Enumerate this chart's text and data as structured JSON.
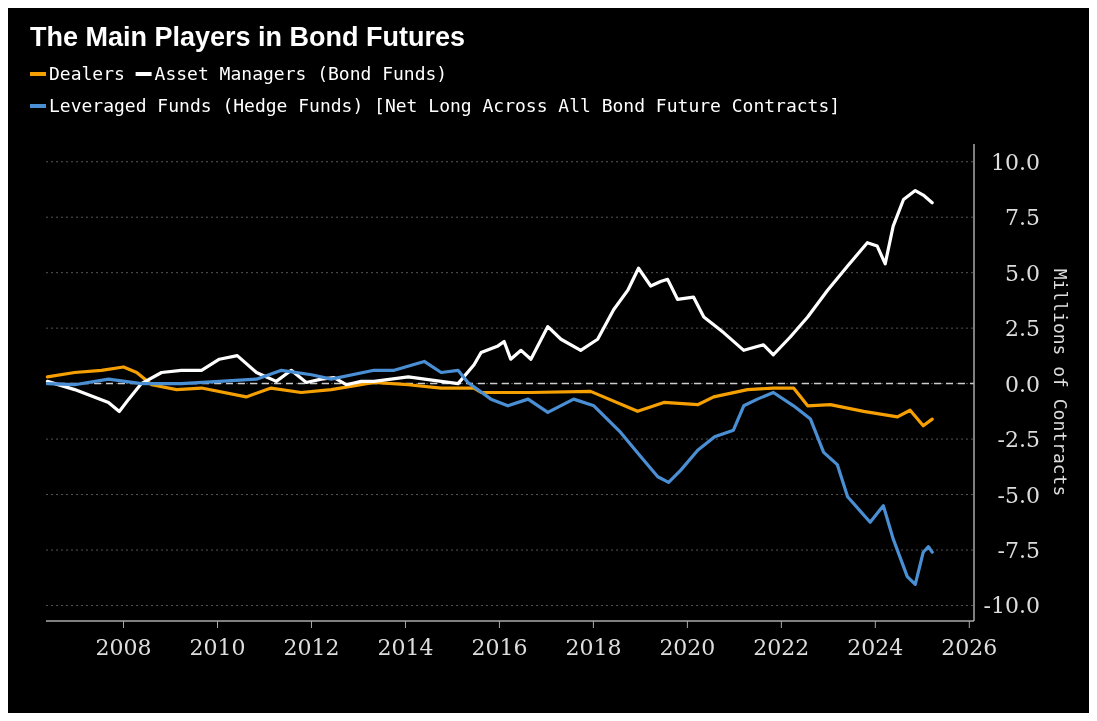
{
  "chart_data": {
    "type": "line",
    "title": "The Main Players in Bond Futures",
    "ylabel": "Millions of Contracts",
    "legend": "top left",
    "grid": "y",
    "xlim": [
      2006.35,
      2026.1
    ],
    "xticks": [
      2008,
      2010,
      2012,
      2014,
      2016,
      2018,
      2020,
      2022,
      2024,
      2026
    ],
    "ylim": [
      -10.7,
      10.8
    ],
    "yticks": [
      {
        "value": 10,
        "label": "10.0"
      },
      {
        "value": 7.5,
        "label": "7.5"
      },
      {
        "value": 5,
        "label": "5.0"
      },
      {
        "value": 2.5,
        "label": "2.5"
      },
      {
        "value": 0,
        "label": "0.0"
      },
      {
        "value": -2.5,
        "label": "-2.5"
      },
      {
        "value": -5,
        "label": "-5.0"
      },
      {
        "value": -7.5,
        "label": "-7.5"
      },
      {
        "value": -10,
        "label": "-10.0"
      }
    ],
    "ref_lines": [
      {
        "axis": "y",
        "value": 0,
        "line_style": "dashed",
        "color": "#cccccc"
      }
    ],
    "series": [
      {
        "name": "Dealers",
        "color": "#f5a000",
        "x": [
          2006.38,
          2006.96,
          2007.53,
          2008.0,
          2008.28,
          2008.6,
          2009.13,
          2009.66,
          2010.61,
          2011.14,
          2011.78,
          2012.42,
          2013.33,
          2014.06,
          2014.76,
          2015.46,
          2015.61,
          2016.67,
          2017.94,
          2018.94,
          2019.5,
          2020.22,
          2020.56,
          2021.28,
          2021.83,
          2022.26,
          2022.56,
          2023.04,
          2023.75,
          2024.47,
          2024.74,
          2025.02,
          2025.21
        ],
        "values": [
          0.3,
          0.5,
          0.6,
          0.75,
          0.5,
          -0.05,
          -0.27,
          -0.2,
          -0.6,
          -0.2,
          -0.4,
          -0.27,
          0.05,
          -0.05,
          -0.2,
          -0.2,
          -0.4,
          -0.4,
          -0.35,
          -1.25,
          -0.85,
          -0.95,
          -0.6,
          -0.27,
          -0.2,
          -0.2,
          -1.0,
          -0.95,
          -1.25,
          -1.5,
          -1.2,
          -1.9,
          -1.6
        ]
      },
      {
        "name": "Asset Managers (Bond Funds)",
        "color": "#ffffff",
        "x": [
          2006.38,
          2006.96,
          2007.68,
          2007.91,
          2008.11,
          2008.38,
          2008.81,
          2009.23,
          2009.66,
          2010.04,
          2010.42,
          2010.83,
          2011.25,
          2011.57,
          2011.89,
          2012.21,
          2012.48,
          2012.74,
          2013.06,
          2013.33,
          2014.06,
          2014.76,
          2015.12,
          2015.46,
          2015.61,
          2015.97,
          2016.1,
          2016.24,
          2016.46,
          2016.67,
          2017.03,
          2017.31,
          2017.73,
          2018.09,
          2018.43,
          2018.73,
          2018.96,
          2019.22,
          2019.43,
          2019.58,
          2019.79,
          2020.13,
          2020.35,
          2020.77,
          2021.2,
          2021.62,
          2021.83,
          2022.19,
          2022.56,
          2022.98,
          2023.41,
          2023.83,
          2024.04,
          2024.21,
          2024.38,
          2024.6,
          2024.85,
          2025.02,
          2025.21
        ],
        "values": [
          0.1,
          -0.27,
          -0.85,
          -1.26,
          -0.7,
          0,
          0.5,
          0.6,
          0.6,
          1.1,
          1.26,
          0.5,
          0.1,
          0.6,
          0.05,
          0.2,
          0.27,
          -0.05,
          0.1,
          0.1,
          0.3,
          0.1,
          0,
          0.85,
          1.4,
          1.7,
          1.9,
          1.1,
          1.5,
          1.1,
          2.57,
          2.0,
          1.5,
          2.0,
          3.33,
          4.2,
          5.2,
          4.4,
          4.6,
          4.7,
          3.8,
          3.9,
          3.0,
          2.3,
          1.5,
          1.75,
          1.3,
          2.1,
          3.0,
          4.2,
          5.3,
          6.35,
          6.2,
          5.4,
          7.1,
          8.3,
          8.7,
          8.5,
          8.15
        ]
      },
      {
        "name": "Leveraged Funds (Hedge Funds) [Net Long Across All Bond Future Contracts]",
        "color": "#4a8fd4",
        "x": [
          2006.38,
          2006.96,
          2007.68,
          2008.38,
          2009.23,
          2010.04,
          2010.83,
          2011.36,
          2012.0,
          2012.42,
          2013.33,
          2013.76,
          2014.4,
          2014.76,
          2015.12,
          2015.33,
          2015.82,
          2016.18,
          2016.61,
          2017.03,
          2017.58,
          2018.01,
          2018.58,
          2019.01,
          2019.37,
          2019.6,
          2019.86,
          2020.22,
          2020.58,
          2020.98,
          2021.2,
          2021.49,
          2021.83,
          2022.26,
          2022.62,
          2022.9,
          2023.19,
          2023.41,
          2023.89,
          2024.17,
          2024.38,
          2024.68,
          2024.85,
          2025.02,
          2025.13,
          2025.21
        ],
        "values": [
          0,
          -0.05,
          0.2,
          0,
          0,
          0.1,
          0.2,
          0.6,
          0.4,
          0.2,
          0.6,
          0.6,
          1.0,
          0.5,
          0.6,
          0.05,
          -0.7,
          -1.0,
          -0.7,
          -1.3,
          -0.7,
          -1.0,
          -2.2,
          -3.3,
          -4.2,
          -4.45,
          -3.9,
          -3.0,
          -2.4,
          -2.1,
          -1.0,
          -0.7,
          -0.4,
          -1.0,
          -1.6,
          -3.1,
          -3.65,
          -5.1,
          -6.25,
          -5.5,
          -7.0,
          -8.7,
          -9.05,
          -7.6,
          -7.35,
          -7.6
        ]
      }
    ]
  }
}
